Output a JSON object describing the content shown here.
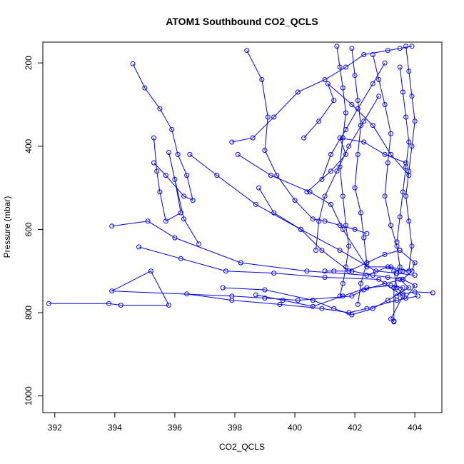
{
  "chart_data": {
    "type": "line",
    "title": "ATOM1 Southbound CO2_QCLS",
    "xlabel": "CO2_QCLS",
    "ylabel": "Pressure (mbar)",
    "xlim": [
      391.6,
      404.9
    ],
    "ylim": [
      1040,
      150
    ],
    "y_reversed": true,
    "grid": false,
    "x_ticks": [
      392,
      394,
      396,
      398,
      400,
      402,
      404
    ],
    "y_ticks": [
      200,
      400,
      600,
      800,
      1000
    ],
    "colors": {
      "series": "#0000ff",
      "frame": "#000000"
    },
    "series": [
      {
        "x": [
          391.8,
          393.8,
          394.2,
          395.8,
          395.2,
          393.9,
          397.9,
          399.0,
          400.1,
          401.9,
          402.3,
          403.0,
          403.6,
          403.9,
          404.0,
          403.5
        ],
        "y": [
          778,
          778,
          782,
          782,
          700,
          748,
          760,
          765,
          770,
          760,
          745,
          730,
          720,
          700,
          680,
          650
        ]
      },
      {
        "x": [
          393.9,
          395.1,
          396.0,
          398.2,
          400.4,
          402.4,
          403.1,
          403.5,
          403.3,
          403.4,
          403.6,
          404.0,
          404.6
        ],
        "y": [
          592,
          580,
          620,
          680,
          700,
          710,
          690,
          700,
          700,
          740,
          755,
          750,
          752
        ]
      },
      {
        "x": [
          394.8,
          396.2,
          397.7,
          399.3,
          401.0,
          402.8,
          403.6,
          403.2,
          403.3
        ],
        "y": [
          642,
          670,
          700,
          705,
          715,
          720,
          760,
          815,
          822
        ]
      },
      {
        "x": [
          394.6,
          395.0,
          395.5,
          395.9,
          396.1,
          396.4,
          396.6,
          396.3,
          395.7,
          395.3
        ],
        "y": [
          202,
          260,
          310,
          360,
          420,
          470,
          530,
          520,
          470,
          440
        ]
      },
      {
        "x": [
          395.3,
          395.4,
          395.5,
          395.7,
          396.2,
          396.0,
          395.8,
          396.3,
          396.8
        ],
        "y": [
          380,
          460,
          510,
          580,
          560,
          480,
          415,
          575,
          635
        ]
      },
      {
        "x": [
          396.5,
          397.4,
          398.7,
          400.2,
          401.5,
          402.7,
          403.4,
          404.0
        ],
        "y": [
          420,
          470,
          540,
          600,
          650,
          700,
          705,
          710
        ]
      },
      {
        "x": [
          396.4,
          397.9,
          399.5,
          400.9,
          401.8,
          402.4,
          403.4,
          404.1
        ],
        "y": [
          755,
          770,
          780,
          790,
          800,
          790,
          770,
          760
        ]
      },
      {
        "x": [
          397.6,
          399.0,
          400.6,
          401.3,
          401.9,
          402.6,
          403.1,
          403.8,
          403.5
        ],
        "y": [
          740,
          745,
          770,
          790,
          805,
          790,
          770,
          740,
          720
        ]
      },
      {
        "x": [
          398.1,
          399.2,
          400.5,
          401.2,
          401.6,
          402.4,
          403.2,
          403.8,
          403.6
        ],
        "y": [
          420,
          470,
          510,
          540,
          600,
          690,
          690,
          700,
          700
        ]
      },
      {
        "x": [
          397.9,
          398.6,
          399.3,
          400.1,
          401.0,
          401.7,
          402.3,
          403.1,
          403.5,
          403.9
        ],
        "y": [
          390,
          380,
          330,
          270,
          240,
          210,
          180,
          170,
          165,
          160
        ]
      },
      {
        "x": [
          398.8,
          399.3,
          400.2,
          400.9,
          401.8,
          402.4,
          403.0,
          403.5
        ],
        "y": [
          500,
          560,
          600,
          650,
          700,
          680,
          660,
          650
        ]
      },
      {
        "x": [
          398.4,
          398.9,
          399.1,
          399.0,
          399.4,
          400.0,
          400.6,
          401.0,
          401.5,
          402.0,
          402.4
        ],
        "y": [
          170,
          240,
          330,
          410,
          470,
          530,
          575,
          580,
          590,
          600,
          610
        ]
      },
      {
        "x": [
          400.3,
          400.8,
          401.3,
          401.1,
          401.9,
          402.6,
          403.2,
          403.8
        ],
        "y": [
          380,
          340,
          290,
          250,
          300,
          350,
          420,
          470
        ]
      },
      {
        "x": [
          400.4,
          401.2,
          401.7,
          401.5,
          402.3,
          403.0,
          403.7
        ],
        "y": [
          510,
          460,
          420,
          380,
          390,
          420,
          440
        ]
      },
      {
        "x": [
          401.4,
          401.5,
          401.6,
          401.7,
          401.6,
          401.5,
          401.6,
          401.7,
          401.8,
          401.7,
          401.6,
          401.5
        ],
        "y": [
          160,
          210,
          260,
          320,
          380,
          450,
          520,
          590,
          640,
          690,
          730,
          760
        ]
      },
      {
        "x": [
          401.9,
          402.0,
          402.1,
          402.2,
          402.1,
          402.0,
          402.2,
          402.3,
          402.4,
          402.2,
          402.1
        ],
        "y": [
          165,
          230,
          290,
          350,
          420,
          500,
          560,
          620,
          680,
          730,
          780
        ]
      },
      {
        "x": [
          402.6,
          402.8,
          403.0,
          403.2,
          403.1,
          403.0,
          403.2,
          403.4,
          403.5,
          403.3,
          403.3
        ],
        "y": [
          180,
          240,
          300,
          370,
          440,
          520,
          590,
          640,
          690,
          740,
          820
        ]
      },
      {
        "x": [
          403.7,
          403.8,
          403.9,
          404.0,
          403.9,
          403.8,
          403.7,
          403.8,
          403.9,
          403.8
        ],
        "y": [
          160,
          220,
          280,
          340,
          400,
          460,
          520,
          580,
          640,
          700
        ]
      },
      {
        "x": [
          403.5,
          403.6,
          403.7,
          403.8,
          403.7,
          403.6,
          403.5,
          403.4
        ],
        "y": [
          210,
          270,
          330,
          390,
          450,
          510,
          570,
          630
        ]
      },
      {
        "x": [
          401.0,
          401.3,
          401.9,
          402.6,
          403.1,
          403.6,
          404.0,
          403.7
        ],
        "y": [
          700,
          700,
          700,
          710,
          715,
          720,
          735,
          765
        ]
      },
      {
        "x": [
          398.7,
          399.6,
          400.6,
          401.6,
          402.4,
          403.2,
          403.6,
          403.4
        ],
        "y": [
          757,
          770,
          785,
          760,
          740,
          735,
          740,
          760
        ]
      },
      {
        "x": [
          402.8,
          402.3,
          401.8,
          401.4,
          401.0,
          400.8,
          400.7
        ],
        "y": [
          280,
          340,
          400,
          460,
          520,
          580,
          650
        ]
      },
      {
        "x": [
          403.0,
          402.6,
          402.1,
          401.7,
          401.2,
          400.9
        ],
        "y": [
          200,
          250,
          310,
          360,
          420,
          480
        ]
      }
    ]
  }
}
